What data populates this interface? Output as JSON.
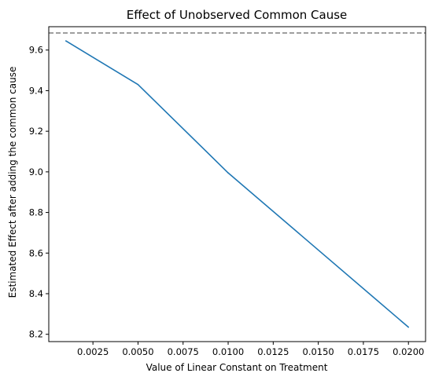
{
  "chart_data": {
    "type": "line",
    "title": "Effect of Unobserved Common Cause",
    "xlabel": "Value of Linear Constant on Treatment",
    "ylabel": "Estimated Effect after adding the common cause",
    "x": [
      0.001,
      0.005,
      0.01,
      0.02
    ],
    "series": [
      {
        "values": [
          9.645,
          9.43,
          8.995,
          8.235
        ],
        "color": "#1f77b4"
      }
    ],
    "reference_line": {
      "y": 9.684,
      "style": "dashed",
      "color": "#7f7f7f"
    },
    "xlim": [
      5e-05,
      0.02095
    ],
    "ylim": [
      8.164,
      9.715
    ],
    "xticks": [
      0.0025,
      0.005,
      0.0075,
      0.01,
      0.0125,
      0.015,
      0.0175,
      0.02
    ],
    "xtick_labels": [
      "0.0025",
      "0.0050",
      "0.0075",
      "0.0100",
      "0.0125",
      "0.0150",
      "0.0175",
      "0.0200"
    ],
    "yticks": [
      8.2,
      8.4,
      8.6,
      8.8,
      9.0,
      9.2,
      9.4,
      9.6
    ],
    "ytick_labels": [
      "8.2",
      "8.4",
      "8.6",
      "8.8",
      "9.0",
      "9.2",
      "9.4",
      "9.6"
    ],
    "grid": false,
    "legend": "none"
  }
}
